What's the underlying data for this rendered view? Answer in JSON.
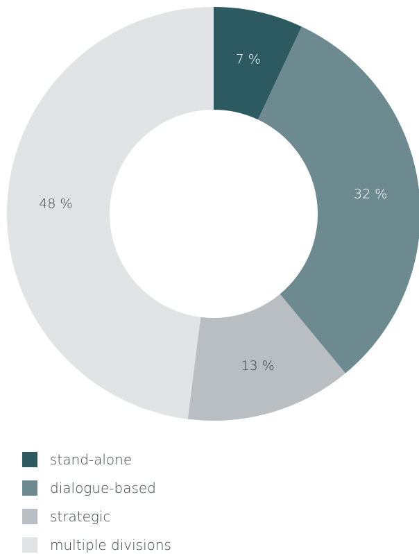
{
  "chart_data": {
    "type": "pie",
    "title": "",
    "categories": [
      "stand-alone",
      "dialogue-based",
      "strategic",
      "multiple divisions"
    ],
    "values": [
      7,
      32,
      13,
      48
    ],
    "value_labels": [
      "7 %",
      "32 %",
      "13 %",
      "48 %"
    ],
    "unit": "%",
    "donut": true,
    "start_angle": "12 o'clock",
    "direction": "clockwise",
    "legend": "bottom-left",
    "colors": [
      "#2d5a60",
      "#6d8a90",
      "#b8bec2",
      "#e1e3e4"
    ],
    "label_colors": [
      "#ffffff",
      "#ffffff",
      "#3c4044",
      "#3c4044"
    ]
  }
}
